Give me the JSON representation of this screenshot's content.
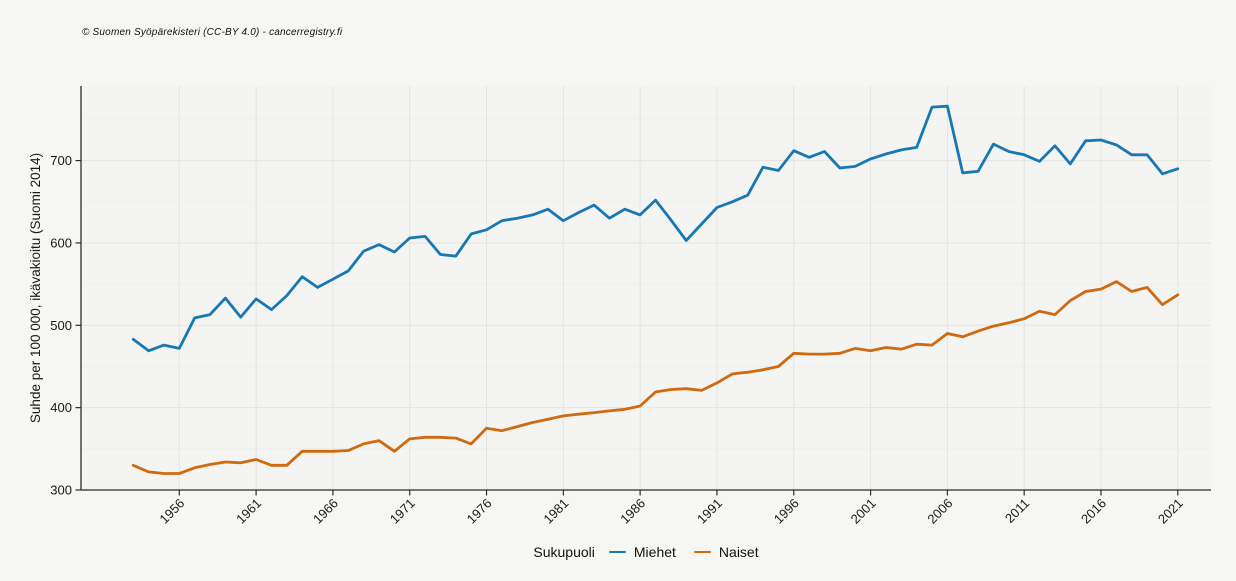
{
  "header": {
    "copyright": "© Suomen Syöpärekisteri (CC-BY 4.0) - cancerregistry.fi"
  },
  "chart_data": {
    "type": "line",
    "title": "",
    "xlabel": "",
    "ylabel": "Suhde per 100 000, ikävakioitu (Suomi 2014)",
    "legend_title": "Sukupuoli",
    "legend_position": "bottom",
    "grid": true,
    "x_ticks": [
      1956,
      1961,
      1966,
      1971,
      1976,
      1981,
      1986,
      1991,
      1996,
      2001,
      2006,
      2011,
      2016,
      2021
    ],
    "y_ticks": [
      300,
      400,
      500,
      600,
      700
    ],
    "y_minor_ticks": [
      350,
      450,
      550,
      650,
      750
    ],
    "ylim": [
      300,
      790
    ],
    "xlim": [
      1949.6,
      2023.2
    ],
    "x": [
      1953,
      1954,
      1955,
      1956,
      1957,
      1958,
      1959,
      1960,
      1961,
      1962,
      1963,
      1964,
      1965,
      1966,
      1967,
      1968,
      1969,
      1970,
      1971,
      1972,
      1973,
      1974,
      1975,
      1976,
      1977,
      1978,
      1979,
      1980,
      1981,
      1982,
      1983,
      1984,
      1985,
      1986,
      1987,
      1988,
      1989,
      1990,
      1991,
      1992,
      1993,
      1994,
      1995,
      1996,
      1997,
      1998,
      1999,
      2000,
      2001,
      2002,
      2003,
      2004,
      2005,
      2006,
      2007,
      2008,
      2009,
      2010,
      2011,
      2012,
      2013,
      2014,
      2015,
      2016,
      2017,
      2018,
      2019,
      2020,
      2021
    ],
    "series": [
      {
        "name": "Miehet",
        "color": "#1878b4",
        "values": [
          483,
          469,
          476,
          472,
          509,
          513,
          533,
          510,
          532,
          519,
          536,
          559,
          546,
          556,
          566,
          590,
          598,
          589,
          606,
          608,
          586,
          584,
          611,
          616,
          627,
          630,
          634,
          641,
          627,
          637,
          646,
          630,
          641,
          634,
          652,
          628,
          603,
          623,
          643,
          650,
          658,
          692,
          688,
          712,
          704,
          711,
          691,
          693,
          702,
          708,
          713,
          716,
          765,
          766,
          685,
          687,
          720,
          711,
          707,
          699,
          718,
          696,
          724,
          725,
          719,
          707,
          707,
          684,
          690
        ]
      },
      {
        "name": "Naiset",
        "color": "#d06a10",
        "values": [
          330,
          322,
          320,
          320,
          327,
          331,
          334,
          333,
          337,
          330,
          330,
          347,
          347,
          347,
          348,
          356,
          360,
          347,
          362,
          364,
          364,
          363,
          356,
          375,
          372,
          377,
          382,
          386,
          390,
          392,
          394,
          396,
          398,
          402,
          419,
          422,
          423,
          421,
          430,
          441,
          443,
          446,
          450,
          466,
          465,
          465,
          466,
          472,
          469,
          473,
          471,
          477,
          476,
          490,
          486,
          493,
          499,
          503,
          508,
          517,
          513,
          530,
          541,
          544,
          553,
          541,
          546,
          525,
          537
        ]
      }
    ],
    "panel_background": "#f4f4f2",
    "gridline_color": "#e4e4e1",
    "axis_color": "#2b2b2b"
  }
}
